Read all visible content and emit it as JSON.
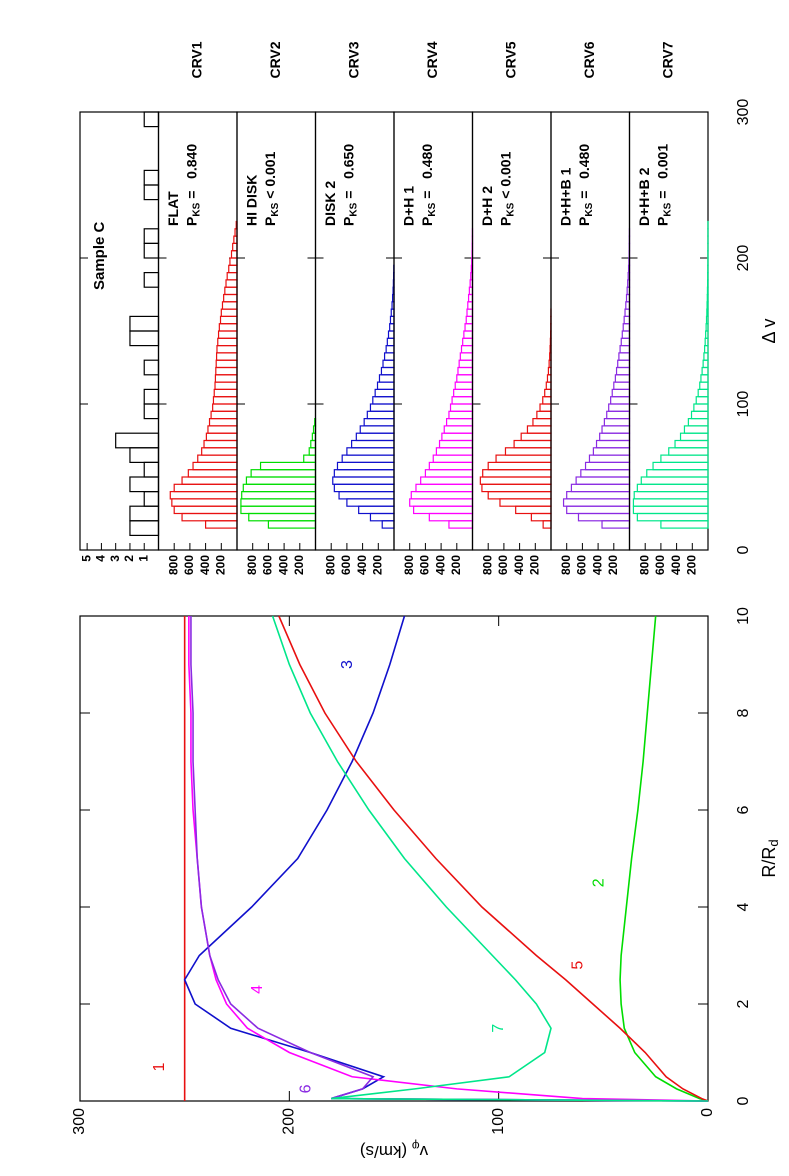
{
  "chart_data": [
    {
      "type": "line",
      "xlabel": "R/R",
      "xlabel_sub": "d",
      "ylabel": "v",
      "ylabel_sub": "φ",
      "ylabel_rest": " (km/s)",
      "x": [
        0,
        0.05,
        0.25,
        0.5,
        1,
        1.5,
        2,
        2.5,
        3,
        4,
        5,
        6,
        7,
        8,
        9,
        10
      ],
      "xlim": [
        0,
        10
      ],
      "xticks": [
        0,
        2,
        4,
        6,
        8,
        10
      ],
      "ylim": [
        0,
        300
      ],
      "yticks": [
        0,
        100,
        200,
        300
      ],
      "series": [
        {
          "name": "1",
          "color": "#e81010",
          "values": [
            250,
            250,
            250,
            250,
            250,
            250,
            250,
            250,
            250,
            250,
            250,
            250,
            250,
            250,
            250,
            250
          ]
        },
        {
          "name": "2",
          "color": "#00dd00",
          "values": [
            0,
            4,
            15,
            25,
            35,
            40,
            41.5,
            42,
            41.5,
            39,
            36.5,
            33.5,
            31,
            29,
            27,
            25
          ]
        },
        {
          "name": "3",
          "color": "#1010cc",
          "values": [
            0,
            180,
            165,
            155,
            190,
            228,
            245,
            250,
            243,
            218,
            196,
            182,
            170,
            160,
            152,
            145
          ]
        },
        {
          "name": "4",
          "color": "#ff00ff",
          "values": [
            0,
            60,
            120,
            170,
            200,
            220,
            230,
            235,
            238,
            242,
            244,
            246,
            247,
            247,
            248,
            248
          ]
        },
        {
          "name": "5",
          "color": "#e81010",
          "values": [
            0,
            3,
            12,
            20,
            30,
            42,
            55,
            68,
            82,
            108,
            130,
            150,
            168,
            183,
            195,
            205
          ]
        },
        {
          "name": "6",
          "color": "#8a2be2",
          "values": [
            0,
            180,
            165,
            160,
            190,
            215,
            228,
            234,
            238,
            242,
            244,
            245,
            246,
            246,
            247,
            247
          ]
        },
        {
          "name": "7",
          "color": "#00e68a",
          "values": [
            0,
            180,
            140,
            95,
            78,
            75,
            82,
            92,
            103,
            125,
            145,
            162,
            177,
            190,
            200,
            208
          ]
        }
      ]
    },
    {
      "type": "histogram",
      "title": "Sample C",
      "color": "#000000",
      "bins": [
        0,
        10,
        20,
        30,
        40,
        50,
        60,
        70,
        80,
        90,
        100,
        110,
        120,
        130,
        140,
        150,
        160,
        170,
        180,
        190,
        200,
        210,
        220,
        230,
        240,
        250,
        260,
        270,
        280,
        290,
        300
      ],
      "values": [
        0,
        2,
        2,
        1,
        2,
        1,
        2,
        3,
        0,
        1,
        1,
        0,
        1,
        0,
        2,
        2,
        0,
        0,
        1,
        0,
        1,
        1,
        0,
        0,
        1,
        1,
        0,
        0,
        0,
        1
      ],
      "xlim": [
        0,
        300
      ],
      "ylim": [
        0,
        5.5
      ],
      "yticks": [
        1,
        2,
        3,
        4,
        5
      ]
    },
    {
      "type": "histogram",
      "xlabel": "Δ v",
      "pks_symbol": "P",
      "pks_subscript": "KS",
      "bins": [
        15,
        20,
        25,
        30,
        35,
        40,
        45,
        50,
        55,
        60,
        65,
        70,
        75,
        80,
        85,
        90,
        95,
        100,
        105,
        110,
        115,
        120,
        125,
        130,
        135,
        140,
        145,
        150,
        155,
        160,
        165,
        170,
        175,
        180,
        185,
        190,
        195,
        200,
        205,
        210,
        215,
        220,
        225
      ],
      "xlim": [
        0,
        300
      ],
      "xticks": [
        0,
        100,
        200,
        300
      ],
      "ylim": [
        0,
        1000
      ],
      "yticks": [
        200,
        400,
        600,
        800
      ],
      "series": [
        {
          "name": "CRV1",
          "model": "FLAT",
          "pks": "=   0.840",
          "color": "#e81010",
          "values": [
            400,
            700,
            800,
            830,
            850,
            800,
            700,
            620,
            560,
            500,
            450,
            420,
            390,
            370,
            350,
            330,
            310,
            300,
            290,
            280,
            275,
            270,
            265,
            260,
            255,
            245,
            235,
            225,
            210,
            200,
            185,
            170,
            155,
            140,
            125,
            105,
            90,
            70,
            55,
            40,
            25,
            10
          ]
        },
        {
          "name": "CRV2",
          "model": "HI DISK",
          "pks": "< 0.001",
          "color": "#00dd00",
          "values": [
            600,
            850,
            950,
            950,
            940,
            920,
            880,
            820,
            700,
            150,
            80,
            60,
            40,
            25,
            10,
            0,
            0,
            0,
            0,
            0,
            0,
            0,
            0,
            0,
            0,
            0,
            0,
            0,
            0,
            0,
            0,
            0,
            0,
            0,
            0,
            0,
            0,
            0,
            0,
            0,
            0,
            0
          ]
        },
        {
          "name": "CRV3",
          "model": "DISK 2",
          "pks": "=   0.650",
          "color": "#1010cc",
          "values": [
            150,
            300,
            450,
            600,
            700,
            760,
            780,
            760,
            720,
            660,
            600,
            540,
            480,
            430,
            380,
            340,
            300,
            270,
            240,
            210,
            185,
            160,
            140,
            120,
            100,
            85,
            70,
            55,
            45,
            35,
            25,
            18,
            12,
            8,
            5,
            3,
            0,
            0,
            0,
            0,
            0,
            0
          ]
        },
        {
          "name": "CRV4",
          "model": "D+H 1",
          "pks": "=   0.480",
          "color": "#ff00ff",
          "values": [
            300,
            550,
            750,
            800,
            780,
            720,
            660,
            600,
            550,
            500,
            460,
            420,
            390,
            360,
            330,
            300,
            280,
            260,
            240,
            220,
            200,
            185,
            170,
            155,
            140,
            125,
            110,
            95,
            80,
            70,
            60,
            50,
            40,
            30,
            22,
            15,
            10,
            6,
            4,
            2,
            1,
            0
          ]
        },
        {
          "name": "CRV5",
          "model": "D+H 2",
          "pks": "< 0.001",
          "color": "#e81010",
          "values": [
            100,
            250,
            450,
            650,
            800,
            880,
            900,
            870,
            800,
            700,
            580,
            470,
            380,
            300,
            230,
            180,
            140,
            105,
            80,
            60,
            45,
            33,
            24,
            17,
            12,
            8,
            5,
            3,
            2,
            1,
            0,
            0,
            0,
            0,
            0,
            0,
            0,
            0,
            0,
            0,
            0,
            0
          ]
        },
        {
          "name": "CRV6",
          "model": "D+H+B 1",
          "pks": "=   0.480",
          "color": "#8a2be2",
          "values": [
            350,
            650,
            800,
            840,
            800,
            740,
            680,
            620,
            560,
            510,
            460,
            420,
            380,
            350,
            320,
            290,
            265,
            240,
            220,
            200,
            180,
            165,
            150,
            135,
            120,
            105,
            92,
            80,
            68,
            57,
            47,
            38,
            30,
            23,
            17,
            12,
            8,
            5,
            3,
            2,
            1,
            0
          ]
        },
        {
          "name": "CRV7",
          "model": "D+H+B 2",
          "pks": "=   0.001",
          "color": "#00e68a",
          "values": [
            600,
            900,
            950,
            950,
            940,
            900,
            850,
            780,
            700,
            600,
            500,
            420,
            350,
            300,
            250,
            210,
            180,
            150,
            125,
            105,
            90,
            75,
            62,
            52,
            43,
            36,
            30,
            24,
            19,
            15,
            12,
            9,
            7,
            5,
            4,
            3,
            2,
            2,
            1,
            1,
            1,
            1
          ]
        }
      ]
    }
  ]
}
